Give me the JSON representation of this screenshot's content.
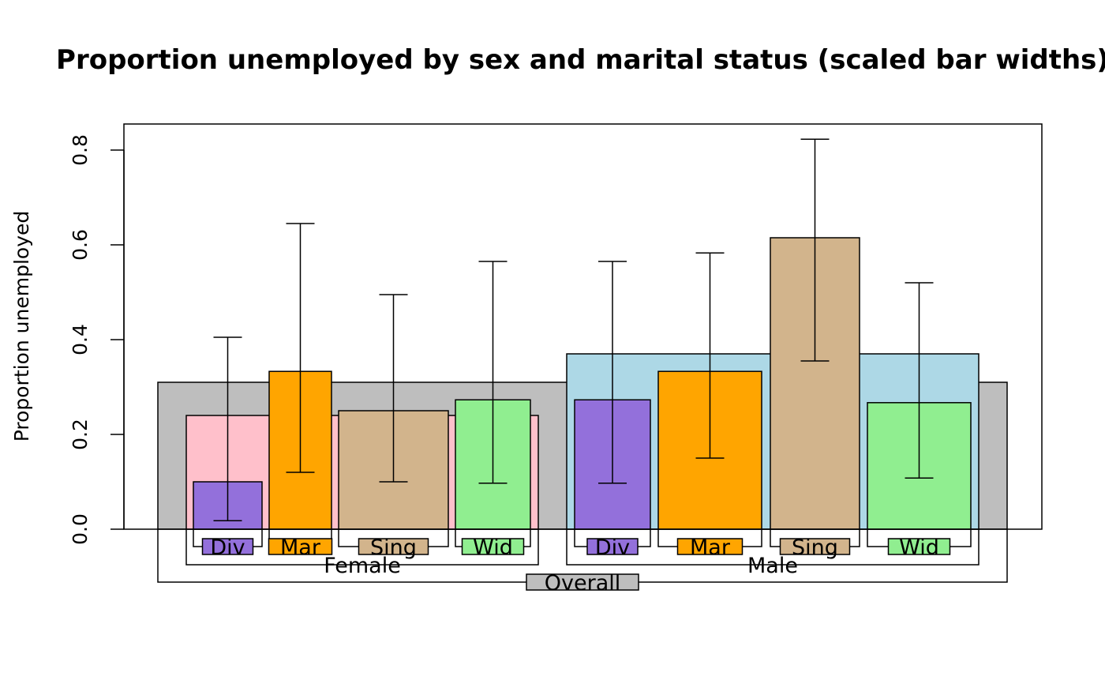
{
  "chart_data": {
    "type": "bar",
    "title": "Proportion unemployed by sex and marital status (scaled bar widths)",
    "xlabel": "",
    "ylabel": "Proportion unemployed",
    "ylim": [
      0,
      0.86
    ],
    "yticks": [
      "0.0",
      "0.2",
      "0.4",
      "0.6",
      "0.8"
    ],
    "overall": {
      "label": "Overall",
      "value": 0.31,
      "color": "#bebebe"
    },
    "groups": [
      {
        "label": "Female",
        "value": 0.24,
        "color": "#ffc0cb",
        "bars": [
          {
            "label": "Div",
            "value": 0.1,
            "ci": [
              0.018,
              0.405
            ],
            "color": "#9370db"
          },
          {
            "label": "Mar",
            "value": 0.333,
            "ci": [
              0.12,
              0.645
            ],
            "color": "#ffa500"
          },
          {
            "label": "Sing",
            "value": 0.25,
            "ci": [
              0.1,
              0.495
            ],
            "color": "#d2b48c"
          },
          {
            "label": "Wid",
            "value": 0.273,
            "ci": [
              0.097,
              0.565
            ],
            "color": "#90ee90"
          }
        ]
      },
      {
        "label": "Male",
        "value": 0.37,
        "color": "#add8e6",
        "bars": [
          {
            "label": "Div",
            "value": 0.273,
            "ci": [
              0.097,
              0.565
            ],
            "color": "#9370db"
          },
          {
            "label": "Mar",
            "value": 0.333,
            "ci": [
              0.15,
              0.583
            ],
            "color": "#ffa500"
          },
          {
            "label": "Sing",
            "value": 0.615,
            "ci": [
              0.355,
              0.823
            ],
            "color": "#d2b48c"
          },
          {
            "label": "Wid",
            "value": 0.267,
            "ci": [
              0.108,
              0.52
            ],
            "color": "#90ee90"
          }
        ]
      }
    ]
  }
}
